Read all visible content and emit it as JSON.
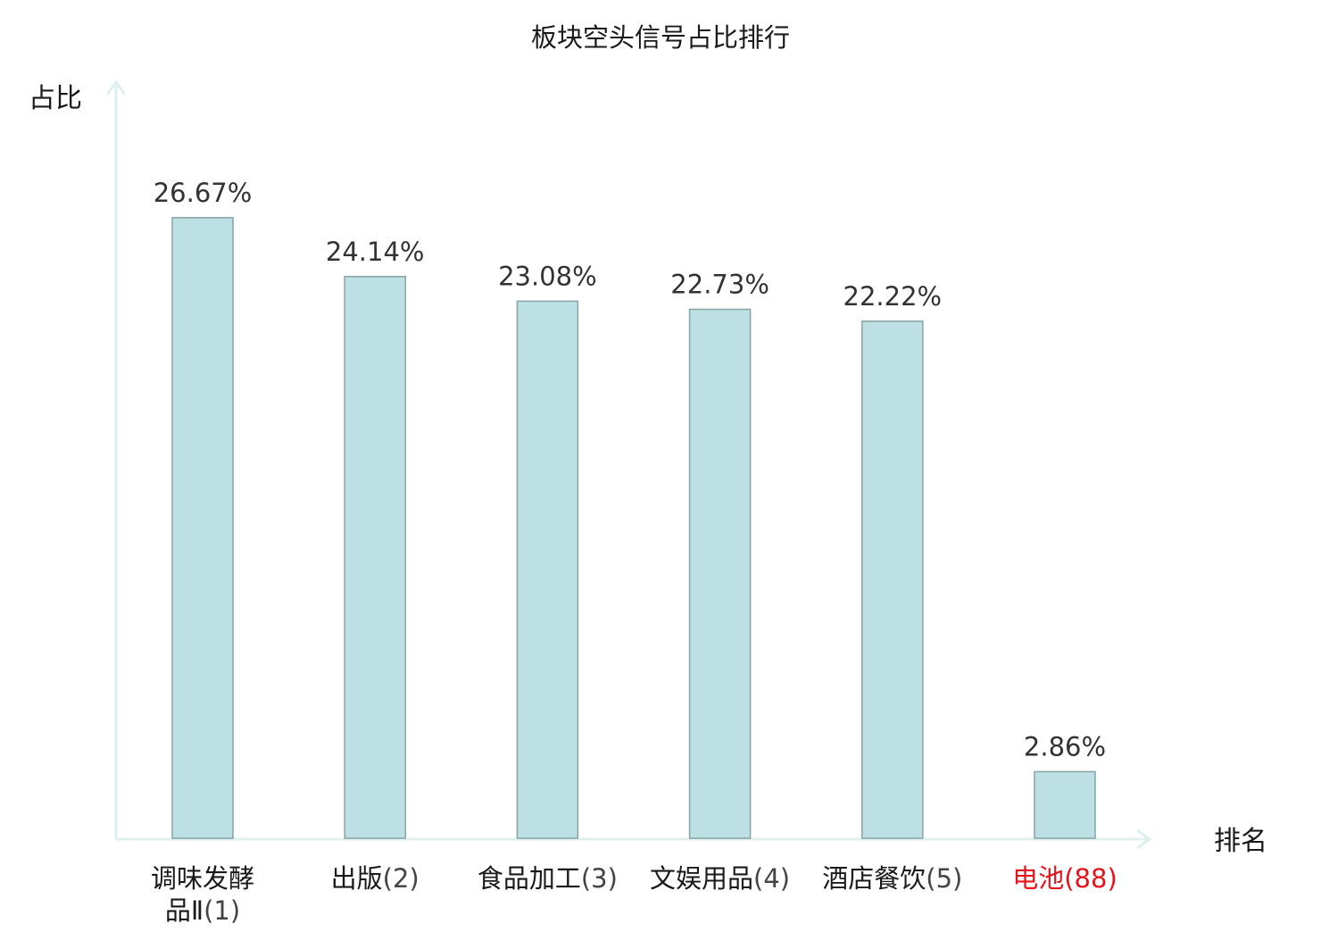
{
  "chart_data": {
    "type": "bar",
    "title": "板块空头信号占比排行",
    "ylabel": "占比",
    "xlabel": "排名",
    "ylim": [
      0,
      30
    ],
    "grid": false,
    "legend": "none",
    "categories": [
      {
        "name_lines": [
          "调味发酵",
          "品Ⅱ"
        ],
        "rank": "(1)",
        "highlight": false
      },
      {
        "name_lines": [
          "出版"
        ],
        "rank": "(2)",
        "highlight": false
      },
      {
        "name_lines": [
          "食品加工"
        ],
        "rank": "(3)",
        "highlight": false
      },
      {
        "name_lines": [
          "文娱用品"
        ],
        "rank": "(4)",
        "highlight": false
      },
      {
        "name_lines": [
          "酒店餐饮"
        ],
        "rank": "(5)",
        "highlight": false
      },
      {
        "name_lines": [
          "电池"
        ],
        "rank": "(88)",
        "highlight": true
      }
    ],
    "values": [
      26.67,
      24.14,
      23.08,
      22.73,
      22.22,
      2.86
    ],
    "value_labels": [
      "26.67%",
      "24.14%",
      "23.08%",
      "22.73%",
      "22.22%",
      "2.86%"
    ],
    "colors": {
      "bar_fill": "#bce0e3",
      "bar_stroke": "#87a3a6",
      "axis": "#dff1ef",
      "text": "#333333",
      "title": "#1a1a1a",
      "highlight": "#e8121b"
    }
  }
}
